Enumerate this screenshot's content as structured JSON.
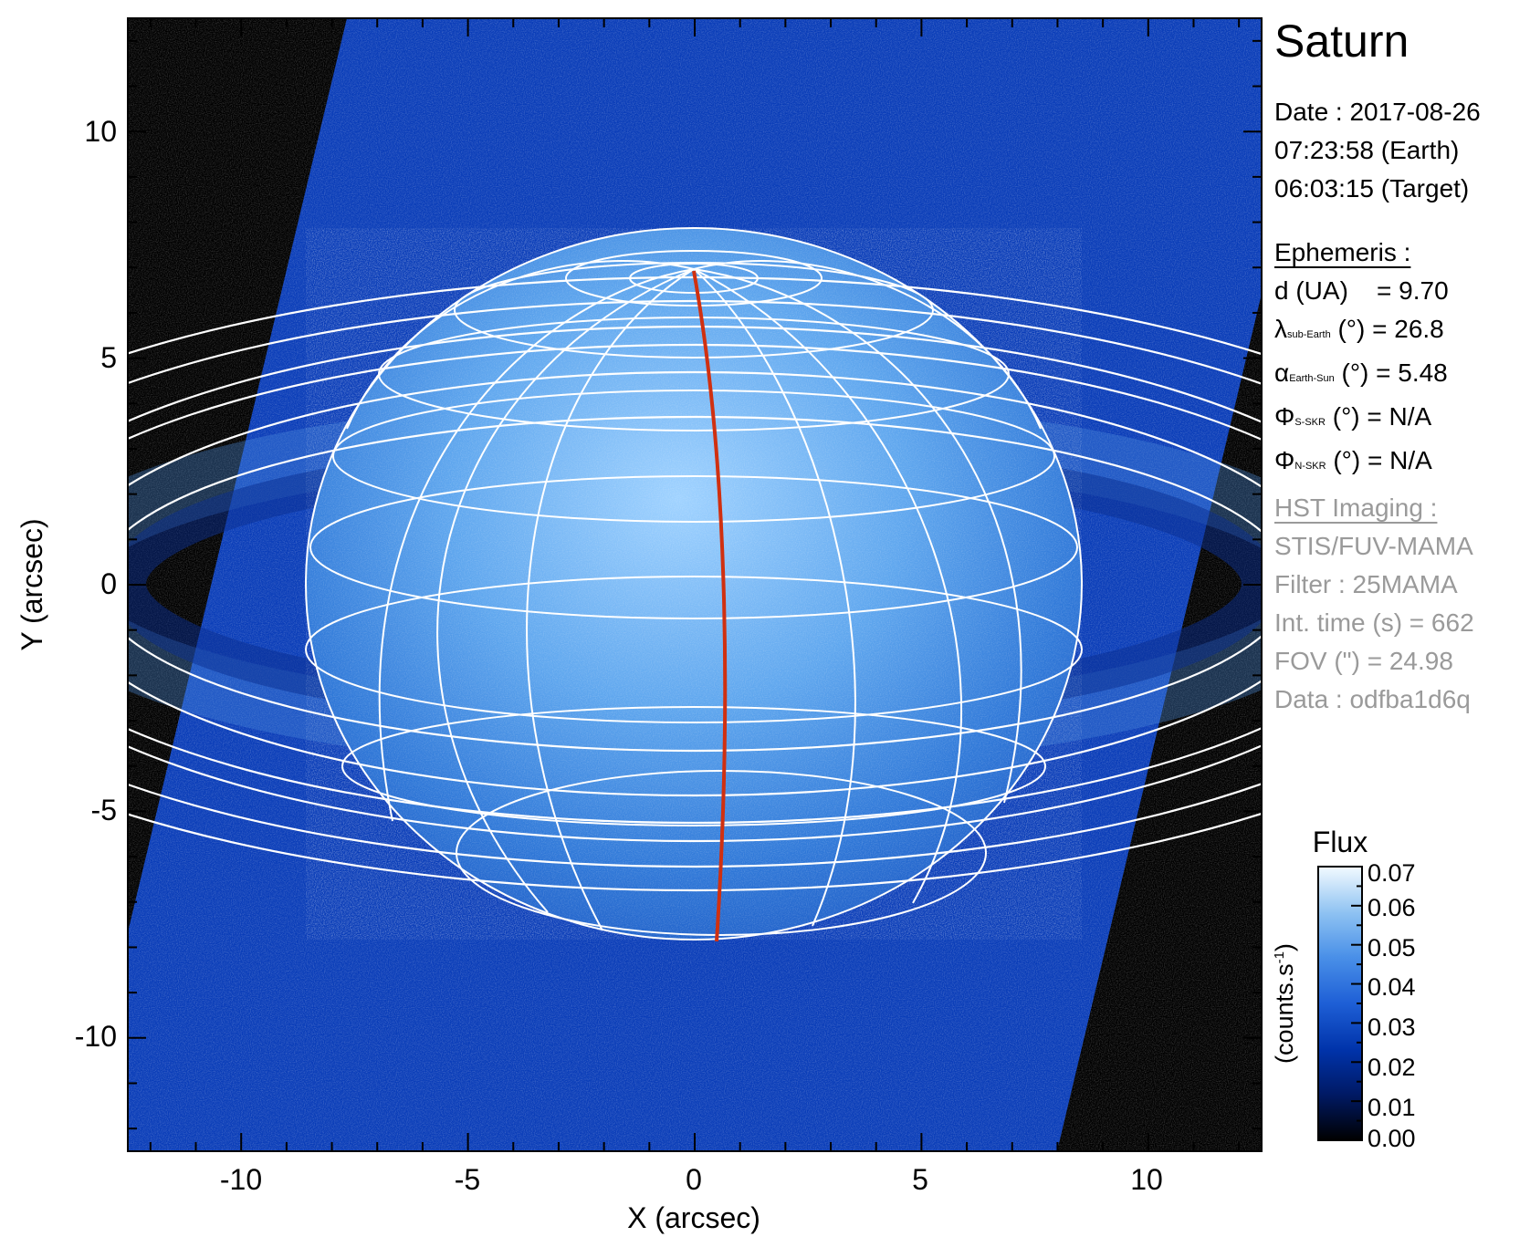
{
  "figure": {
    "title": "Saturn",
    "x_axis": {
      "label": "X (arcsec)",
      "range": [
        -12.5,
        12.5
      ],
      "ticks": [
        -10,
        -5,
        0,
        5,
        10
      ],
      "tick_labels": [
        "-10",
        "-5",
        "0",
        "5",
        "10"
      ]
    },
    "y_axis": {
      "label": "Y (arcsec)",
      "range": [
        -12.5,
        12.5
      ],
      "ticks": [
        10,
        5,
        0,
        -5,
        -10
      ],
      "tick_labels": [
        "10",
        "5",
        "0",
        "-5",
        "-10"
      ]
    },
    "colorbar": {
      "title": "Flux",
      "unit_label": "(counts.s",
      "unit_sup": "-1",
      "unit_close": ")",
      "tick_labels": [
        "0.07",
        "0.06",
        "0.05",
        "0.04",
        "0.03",
        "0.02",
        "0.01",
        "0.00"
      ],
      "range": [
        0.0,
        0.07
      ],
      "colors": [
        "#000000",
        "#001a66",
        "#0033aa",
        "#1e5fd6",
        "#4a90e8",
        "#8ec2f2",
        "#e8f6ff"
      ]
    },
    "colors": {
      "background_black": "#000000",
      "image_blue": "#0a3db8",
      "grid_white": "#ffffff",
      "meridian_red": "#d03010",
      "gray_text": "#9a9a9a"
    }
  },
  "observation": {
    "date_line": "Date : 2017-08-26",
    "earth_time": "07:23:58 (Earth)",
    "target_time": "06:03:15 (Target)"
  },
  "ephemeris": {
    "header": "Ephemeris :",
    "d_label": "d (UA)",
    "d_value": "= 9.70",
    "lambda_symbol": "λ",
    "lambda_sub": "sub-Earth",
    "lambda_value": "(°) = 26.8",
    "alpha_symbol": "α",
    "alpha_sub": "Earth-Sun",
    "alpha_value": "(°) = 5.48",
    "phi_s_symbol": "Φ",
    "phi_s_sub": "S-SKR",
    "phi_s_value": "(°)   = N/A",
    "phi_n_symbol": "Φ",
    "phi_n_sub": "N-SKR",
    "phi_n_value": "(°)   = N/A"
  },
  "hst": {
    "header": "HST Imaging :",
    "instrument": "STIS/FUV-MAMA",
    "filter": "Filter : 25MAMA",
    "int_time": "Int. time (s) = 662",
    "fov": "FOV (\") = 24.98",
    "data": "Data : odfba1d6q"
  }
}
